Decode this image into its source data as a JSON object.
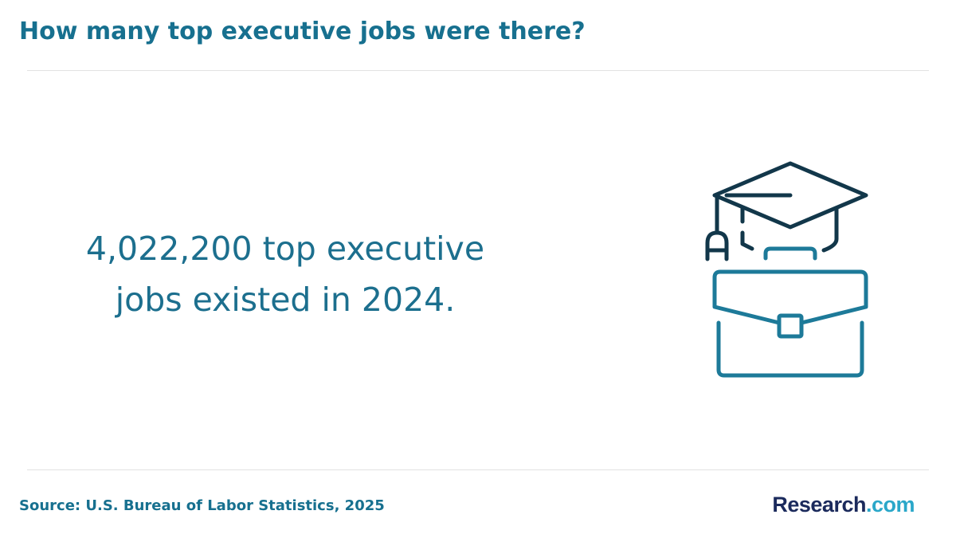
{
  "header": {
    "title": "How many top executive jobs were there?"
  },
  "statement": {
    "lines": [
      "4,022,200 top executive",
      "jobs existed in 2024."
    ]
  },
  "footer": {
    "source": "Source: U.S. Bureau of Labor Statistics, 2025",
    "logo": {
      "name": "Research",
      "suffix": ".com"
    }
  }
}
